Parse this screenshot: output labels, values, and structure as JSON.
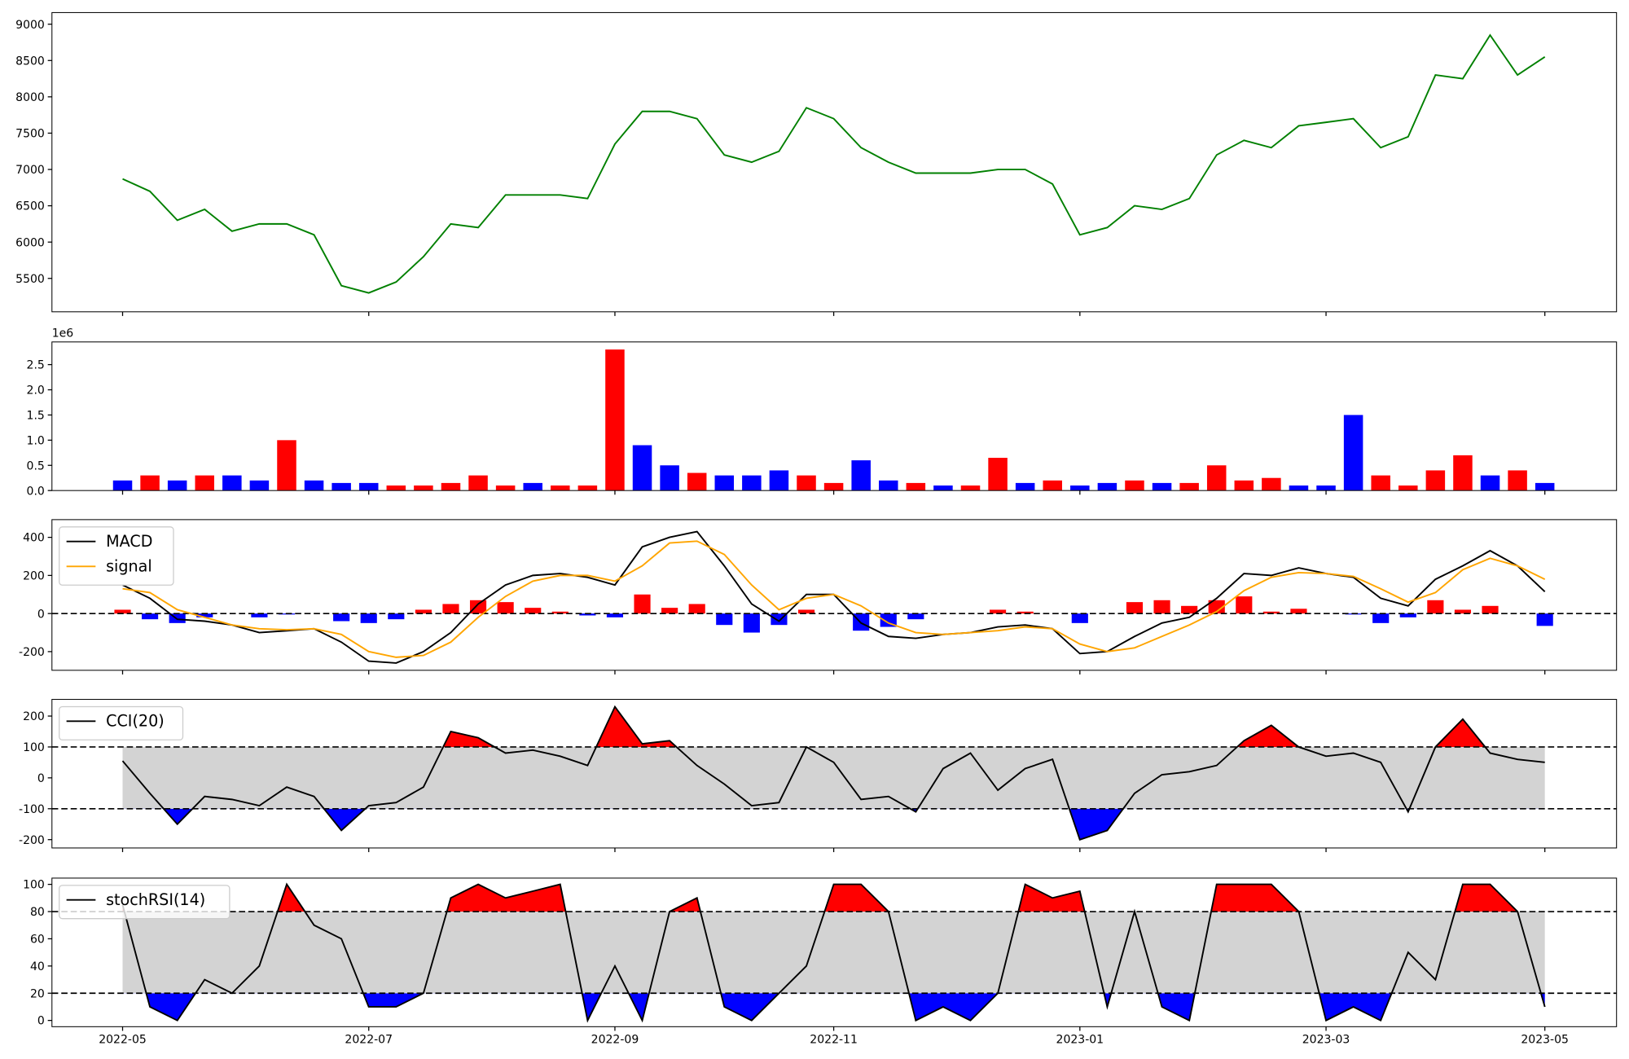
{
  "chart_data": [
    {
      "type": "line",
      "color": "green",
      "values": [
        6870,
        6700,
        6300,
        6450,
        6150,
        6250,
        6250,
        6100,
        5400,
        5300,
        5450,
        5800,
        6250,
        6200,
        6650,
        6650,
        6650,
        6600,
        7350,
        7800,
        7800,
        7700,
        7200,
        7100,
        7250,
        7850,
        7700,
        7300,
        7100,
        6950,
        6950,
        6950,
        7000,
        7000,
        6800,
        6100,
        6200,
        6500,
        6450,
        6600,
        7200,
        7400,
        7300,
        7600,
        7650,
        7700,
        7300,
        7450,
        8300,
        8250,
        8850,
        8300,
        8550
      ],
      "ylim": [
        5040,
        9160
      ],
      "yticks": [
        5500,
        6000,
        6500,
        7000,
        7500,
        8000,
        8500,
        9000
      ]
    },
    {
      "type": "bar",
      "offset_label": "1e6",
      "values": [
        0.2,
        0.3,
        0.2,
        0.3,
        0.3,
        0.2,
        1.0,
        0.2,
        0.15,
        0.15,
        0.1,
        0.1,
        0.15,
        0.3,
        0.1,
        0.15,
        0.1,
        0.1,
        2.8,
        0.9,
        0.5,
        0.35,
        0.3,
        0.3,
        0.4,
        0.3,
        0.15,
        0.6,
        0.2,
        0.15,
        0.1,
        0.1,
        0.65,
        0.15,
        0.2,
        0.1,
        0.15,
        0.2,
        0.15,
        0.15,
        0.5,
        0.2,
        0.25,
        0.1,
        0.1,
        1.5,
        0.3,
        0.1,
        0.4,
        0.7,
        0.3,
        0.4,
        0.15
      ],
      "colors": [
        "blue",
        "red",
        "blue",
        "red",
        "blue",
        "blue",
        "red",
        "blue",
        "blue",
        "blue",
        "red",
        "red",
        "red",
        "red",
        "red",
        "blue",
        "red",
        "red",
        "red",
        "blue",
        "blue",
        "red",
        "blue",
        "blue",
        "blue",
        "red",
        "red",
        "blue",
        "blue",
        "red",
        "blue",
        "red",
        "red",
        "blue",
        "red",
        "blue",
        "blue",
        "red",
        "blue",
        "red",
        "red",
        "red",
        "red",
        "blue",
        "blue",
        "blue",
        "red",
        "red",
        "red",
        "red",
        "blue",
        "red",
        "blue"
      ],
      "ylim": [
        0,
        2.95
      ],
      "yticks": [
        {
          "value": 0,
          "label": "0.0"
        },
        0.5,
        {
          "value": 1,
          "label": "1.0"
        },
        1.5,
        {
          "value": 2,
          "label": "2.0"
        },
        2.5
      ]
    },
    {
      "type": "macd",
      "legend": "upper left",
      "series": [
        {
          "name": "MACD",
          "color": "black",
          "values": [
            150,
            80,
            -30,
            -40,
            -60,
            -100,
            -90,
            -80,
            -150,
            -250,
            -260,
            -200,
            -100,
            50,
            150,
            200,
            210,
            190,
            150,
            350,
            400,
            430,
            250,
            50,
            -40,
            100,
            100,
            -50,
            -120,
            -130,
            -110,
            -100,
            -70,
            -60,
            -80,
            -210,
            -200,
            -120,
            -50,
            -20,
            80,
            210,
            200,
            240,
            210,
            190,
            80,
            40,
            180,
            250,
            330,
            250,
            115
          ]
        },
        {
          "name": "signal",
          "color": "orange",
          "values": [
            130,
            110,
            20,
            -20,
            -60,
            -80,
            -85,
            -80,
            -110,
            -200,
            -230,
            -220,
            -150,
            -20,
            90,
            170,
            200,
            200,
            170,
            250,
            370,
            380,
            310,
            150,
            20,
            80,
            100,
            40,
            -50,
            -100,
            -110,
            -100,
            -90,
            -70,
            -80,
            -160,
            -200,
            -180,
            -120,
            -60,
            10,
            120,
            190,
            215,
            210,
            195,
            130,
            60,
            110,
            230,
            290,
            250,
            180
          ]
        }
      ],
      "histogram": {
        "up_color": "red",
        "down_color": "blue",
        "values": [
          20,
          -30,
          -50,
          -20,
          0,
          -20,
          -5,
          0,
          -40,
          -50,
          -30,
          20,
          50,
          70,
          60,
          30,
          10,
          -10,
          -20,
          100,
          30,
          50,
          -60,
          -100,
          -60,
          20,
          0,
          -90,
          -70,
          -30,
          0,
          0,
          20,
          10,
          0,
          -50,
          0,
          60,
          70,
          40,
          70,
          90,
          10,
          25,
          0,
          -5,
          -50,
          -20,
          70,
          20,
          40,
          0,
          -65
        ]
      },
      "zero_line": 0,
      "ylim": [
        -298,
        493
      ],
      "yticks": [
        -200,
        0,
        200,
        400
      ]
    },
    {
      "type": "oscillator",
      "legend": "upper left",
      "series": [
        {
          "name": "CCI(20)",
          "color": "black",
          "values": [
            55,
            -50,
            -150,
            -60,
            -70,
            -90,
            -30,
            -60,
            -170,
            -90,
            -80,
            -30,
            150,
            130,
            80,
            90,
            70,
            40,
            230,
            110,
            120,
            40,
            -20,
            -90,
            -80,
            100,
            50,
            -70,
            -60,
            -110,
            30,
            80,
            -40,
            30,
            60,
            -200,
            -170,
            -50,
            10,
            20,
            40,
            120,
            170,
            100,
            70,
            80,
            50,
            -110,
            100,
            190,
            80,
            60,
            50
          ]
        }
      ],
      "thresholds": [
        100,
        -100
      ],
      "upper_color": "red",
      "lower_color": "blue",
      "band_color": "lightgray",
      "ylim": [
        -227,
        254
      ],
      "yticks": [
        -200,
        -100,
        0,
        100,
        200
      ]
    },
    {
      "type": "oscillator",
      "legend": "upper left",
      "series": [
        {
          "name": "stochRSI(14)",
          "color": "black",
          "values": [
            85,
            10,
            0,
            30,
            20,
            40,
            100,
            70,
            60,
            10,
            10,
            20,
            90,
            100,
            90,
            95,
            100,
            0,
            40,
            0,
            80,
            90,
            10,
            0,
            20,
            40,
            100,
            100,
            80,
            0,
            10,
            0,
            20,
            100,
            90,
            95,
            10,
            80,
            10,
            0,
            100,
            100,
            100,
            80,
            0,
            10,
            0,
            50,
            30,
            100,
            100,
            80,
            10
          ]
        }
      ],
      "thresholds": [
        80,
        20
      ],
      "upper_color": "red",
      "lower_color": "blue",
      "band_color": "lightgray",
      "ylim": [
        -4.6,
        104.6
      ],
      "yticks": [
        0,
        20,
        40,
        60,
        80,
        100
      ],
      "categories": [
        "2022-05",
        null,
        null,
        null,
        null,
        null,
        null,
        null,
        null,
        "2022-07",
        null,
        null,
        null,
        null,
        null,
        null,
        null,
        null,
        "2022-09",
        null,
        null,
        null,
        null,
        null,
        null,
        null,
        "2022-11",
        null,
        null,
        null,
        null,
        null,
        null,
        null,
        null,
        "2023-01",
        null,
        null,
        null,
        null,
        null,
        null,
        null,
        null,
        "2023-03",
        null,
        null,
        null,
        null,
        null,
        null,
        null,
        "2023-05"
      ]
    }
  ]
}
